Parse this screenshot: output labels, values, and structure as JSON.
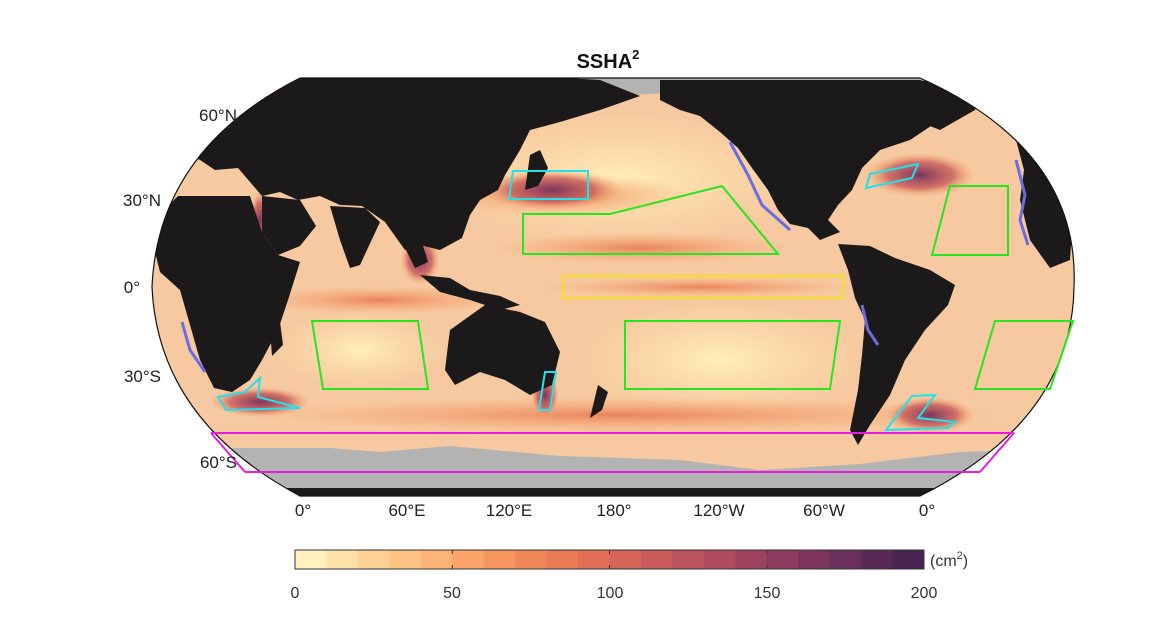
{
  "map": {
    "title": "SSHA",
    "title_sup": "2",
    "projection": "Robinson-like world map",
    "lat_labels": [
      "60°N",
      "30°N",
      "0°",
      "30°S",
      "60°S"
    ],
    "lon_labels": [
      "0°",
      "60°E",
      "120°E",
      "180°",
      "120°W",
      "60°W",
      "0°"
    ],
    "colors": {
      "land": "#1b1919",
      "ice": "#b3b3b3",
      "ocean_base": "#f6c9a0",
      "box_green": "#27e51f",
      "box_yellow": "#f5e019",
      "box_cyan": "#22e1eb",
      "box_magenta": "#e81cdf",
      "coast_blue": "#6b6cdf"
    }
  },
  "colorbar": {
    "unit_base": "(cm",
    "unit_sup": "2",
    "unit_close": ")",
    "ticks": [
      "0",
      "50",
      "100",
      "150",
      "200"
    ],
    "min": 0,
    "max": 200,
    "n_steps": 20,
    "colors": [
      "#fff0bd",
      "#fee1a8",
      "#fdd196",
      "#fcc385",
      "#fbb476",
      "#f9a56a",
      "#f5965f",
      "#f08858",
      "#e97b55",
      "#e06f56",
      "#d56558",
      "#c95b5a",
      "#bb535c",
      "#ad4b5d",
      "#9d435e",
      "#8c3c5e",
      "#7b355d",
      "#6a2f5a",
      "#592955",
      "#48234f"
    ]
  }
}
